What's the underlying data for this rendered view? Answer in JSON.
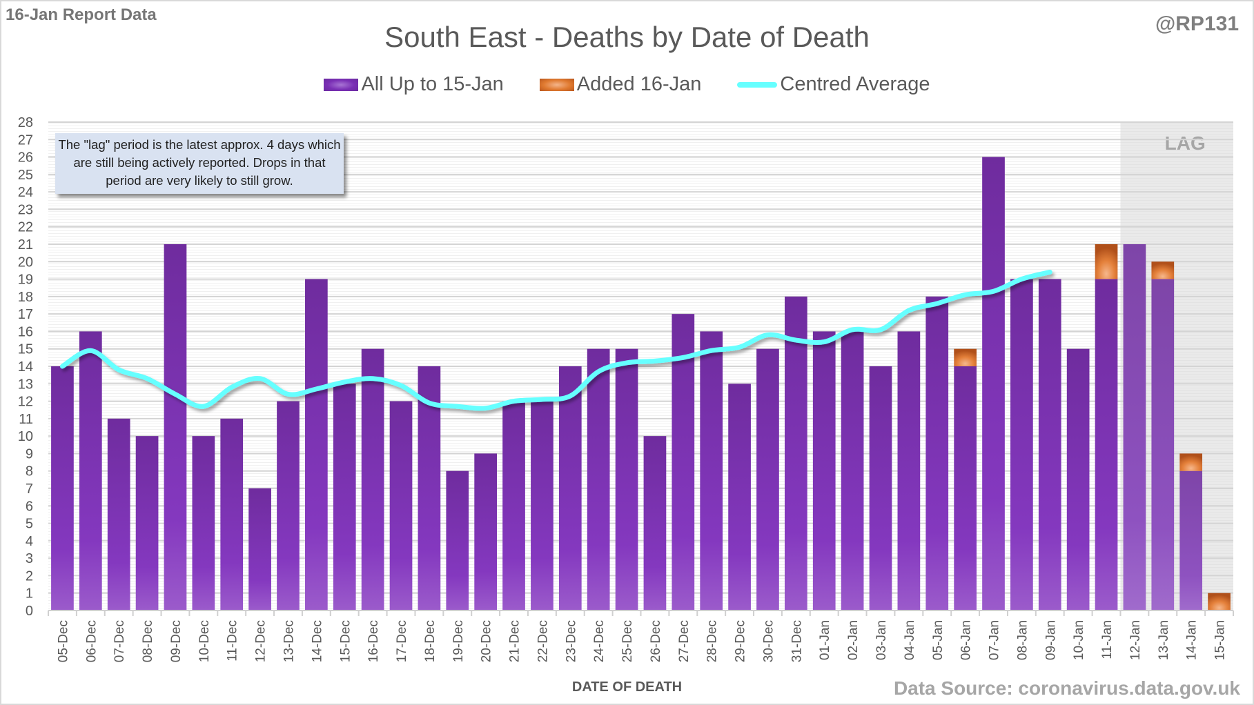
{
  "header": {
    "report_label": "16-Jan Report Data",
    "author_handle": "@RP131",
    "title": "South East - Deaths by Date of Death"
  },
  "legend": [
    {
      "label": "All Up to 15-Jan",
      "kind": "bar",
      "color": "#7a2fb5"
    },
    {
      "label": "Added 16-Jan",
      "kind": "bar",
      "color": "#e07a30"
    },
    {
      "label": "Centred Average",
      "kind": "line",
      "color": "#66ffff"
    }
  ],
  "note": "The \"lag\" period is the latest approx. 4 days which are still being actively reported.  Drops in that period are very likely to still grow.",
  "footer": {
    "xlabel": "DATE OF DEATH",
    "source": "Data Source: coronavirus.data.gov.uk"
  },
  "chart_data": {
    "type": "bar",
    "stacked": true,
    "title": "South East - Deaths by Date of Death",
    "xlabel": "DATE OF DEATH",
    "ylabel": "",
    "ylim": [
      0,
      28
    ],
    "yticks": [
      0,
      1,
      2,
      3,
      4,
      5,
      6,
      7,
      8,
      9,
      10,
      11,
      12,
      13,
      14,
      15,
      16,
      17,
      18,
      19,
      20,
      21,
      22,
      23,
      24,
      25,
      26,
      27,
      28
    ],
    "grid": true,
    "legend_position": "top-center",
    "lag_region": {
      "label": "LAG",
      "from": "12-Jan",
      "to": "15-Jan",
      "color": "#e6e6e6"
    },
    "categories": [
      "05-Dec",
      "06-Dec",
      "07-Dec",
      "08-Dec",
      "09-Dec",
      "10-Dec",
      "11-Dec",
      "12-Dec",
      "13-Dec",
      "14-Dec",
      "15-Dec",
      "16-Dec",
      "17-Dec",
      "18-Dec",
      "19-Dec",
      "20-Dec",
      "21-Dec",
      "22-Dec",
      "23-Dec",
      "24-Dec",
      "25-Dec",
      "26-Dec",
      "27-Dec",
      "28-Dec",
      "29-Dec",
      "30-Dec",
      "31-Dec",
      "01-Jan",
      "02-Jan",
      "03-Jan",
      "04-Jan",
      "05-Jan",
      "06-Jan",
      "07-Jan",
      "08-Jan",
      "09-Jan",
      "10-Jan",
      "11-Jan",
      "12-Jan",
      "13-Jan",
      "14-Jan",
      "15-Jan"
    ],
    "series": [
      {
        "name": "All Up to 15-Jan",
        "type": "bar",
        "color": "#7a2fb5",
        "values": [
          14,
          16,
          11,
          10,
          21,
          10,
          11,
          7,
          12,
          19,
          13,
          15,
          12,
          14,
          8,
          9,
          12,
          12,
          14,
          15,
          15,
          10,
          17,
          16,
          13,
          15,
          18,
          16,
          16,
          14,
          16,
          18,
          14,
          26,
          19,
          19,
          15,
          19,
          21,
          19,
          8,
          0
        ]
      },
      {
        "name": "Added 16-Jan",
        "type": "bar",
        "color": "#e07a30",
        "values": [
          0,
          0,
          0,
          0,
          0,
          0,
          0,
          0,
          0,
          0,
          0,
          0,
          0,
          0,
          0,
          0,
          0,
          0,
          0,
          0,
          0,
          0,
          0,
          0,
          0,
          0,
          0,
          0,
          0,
          0,
          0,
          0,
          1,
          0,
          0,
          0,
          0,
          2,
          0,
          1,
          1,
          1
        ]
      },
      {
        "name": "Centred Average",
        "type": "line",
        "color": "#66ffff",
        "values": [
          14.0,
          14.9,
          13.8,
          13.3,
          12.4,
          11.7,
          12.8,
          13.3,
          12.4,
          12.7,
          13.1,
          13.3,
          12.9,
          11.9,
          11.7,
          11.6,
          12.0,
          12.1,
          12.3,
          13.7,
          14.2,
          14.3,
          14.5,
          14.9,
          15.1,
          15.8,
          15.5,
          15.4,
          16.1,
          16.1,
          17.2,
          17.6,
          18.1,
          18.3,
          19.0,
          19.4,
          null,
          null,
          null,
          null,
          null,
          null
        ]
      }
    ]
  }
}
